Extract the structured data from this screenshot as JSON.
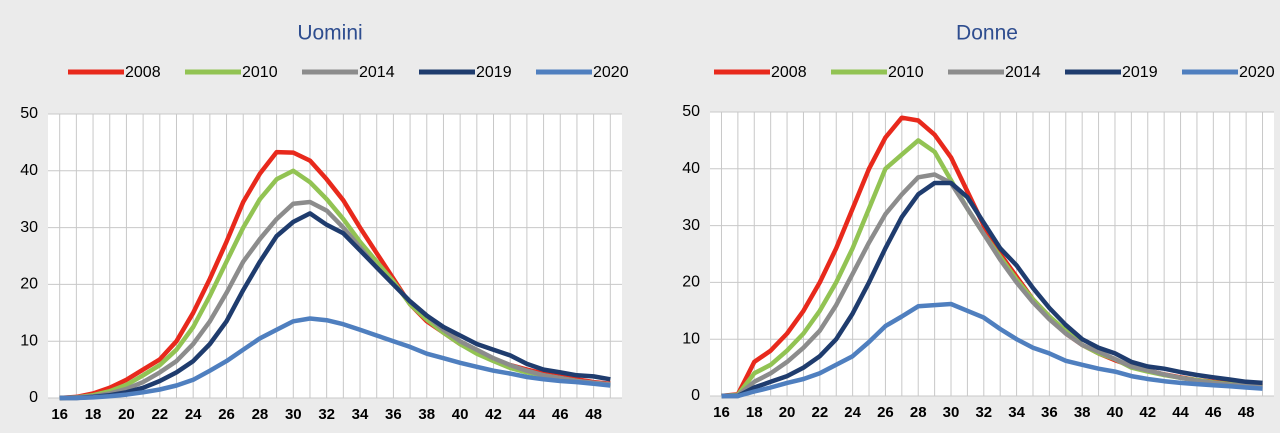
{
  "chart_data": [
    {
      "type": "line",
      "title": "Uomini",
      "x": [
        16,
        17,
        18,
        19,
        20,
        21,
        22,
        23,
        24,
        25,
        26,
        27,
        28,
        29,
        30,
        31,
        32,
        33,
        34,
        35,
        36,
        37,
        38,
        39,
        40,
        41,
        42,
        43,
        44,
        45,
        46,
        47,
        48,
        49
      ],
      "xlim": [
        15.3,
        49.7
      ],
      "xticks": [
        16,
        18,
        20,
        22,
        24,
        26,
        28,
        30,
        32,
        34,
        36,
        38,
        40,
        42,
        44,
        46,
        48
      ],
      "ylim": [
        0,
        50
      ],
      "yticks": [
        0,
        10,
        20,
        30,
        40,
        50
      ],
      "grid": true,
      "series": [
        {
          "name": "2008",
          "color": "#e8291c",
          "values": [
            0,
            0.2,
            0.8,
            1.8,
            3.2,
            5,
            6.8,
            10,
            15,
            21,
            27.5,
            34.5,
            39.5,
            43.3,
            43.2,
            41.8,
            38.5,
            34.8,
            30,
            25.5,
            21,
            16.5,
            13.5,
            11.5,
            9.5,
            8,
            6.8,
            5.8,
            5,
            4.3,
            3.8,
            3.3,
            2.8,
            2.5
          ]
        },
        {
          "name": "2010",
          "color": "#92c353",
          "values": [
            0,
            0.1,
            0.5,
            1.2,
            2.3,
            4,
            5.8,
            8.5,
            12.5,
            18,
            24,
            30,
            35,
            38.5,
            40,
            38,
            35,
            31.5,
            27.5,
            24,
            20.5,
            16.5,
            13.8,
            11.5,
            9.5,
            7.8,
            6.5,
            5.3,
            4.5,
            4,
            3.5,
            3,
            2.6,
            2.3
          ]
        },
        {
          "name": "2014",
          "color": "#8c8c8c",
          "values": [
            0,
            0.1,
            0.3,
            0.8,
            1.6,
            2.8,
            4.5,
            6.5,
            9.5,
            13.5,
            18.5,
            24,
            28,
            31.5,
            34.2,
            34.5,
            33,
            30,
            26.5,
            23,
            20,
            17,
            14.5,
            12,
            10,
            8.5,
            7,
            5.8,
            4.8,
            4,
            3.5,
            3,
            2.7,
            2.4
          ]
        },
        {
          "name": "2019",
          "color": "#1f3c6e",
          "values": [
            0,
            0,
            0.2,
            0.5,
            1,
            1.8,
            3,
            4.5,
            6.5,
            9.5,
            13.5,
            19,
            24,
            28.5,
            31,
            32.5,
            30.5,
            29,
            26,
            23,
            20,
            17,
            14.5,
            12.5,
            11,
            9.5,
            8.5,
            7.5,
            6,
            5,
            4.5,
            4,
            3.8,
            3.3
          ]
        },
        {
          "name": "2020",
          "color": "#4f7fbf",
          "values": [
            0,
            0,
            0.1,
            0.3,
            0.6,
            1,
            1.5,
            2.2,
            3.2,
            4.8,
            6.5,
            8.5,
            10.5,
            12,
            13.5,
            14,
            13.7,
            13,
            12,
            11,
            10,
            9,
            7.8,
            7,
            6.2,
            5.5,
            4.8,
            4.3,
            3.7,
            3.3,
            3,
            2.8,
            2.5,
            2.2
          ]
        }
      ]
    },
    {
      "type": "line",
      "title": "Donne",
      "x": [
        16,
        17,
        18,
        19,
        20,
        21,
        22,
        23,
        24,
        25,
        26,
        27,
        28,
        29,
        30,
        31,
        32,
        33,
        34,
        35,
        36,
        37,
        38,
        39,
        40,
        41,
        42,
        43,
        44,
        45,
        46,
        47,
        48,
        49
      ],
      "xlim": [
        15.3,
        49.7
      ],
      "xticks": [
        16,
        18,
        20,
        22,
        24,
        26,
        28,
        30,
        32,
        34,
        36,
        38,
        40,
        42,
        44,
        46,
        48
      ],
      "ylim": [
        0,
        50
      ],
      "yticks": [
        0,
        10,
        20,
        30,
        40,
        50
      ],
      "grid": true,
      "series": [
        {
          "name": "2008",
          "color": "#e8291c",
          "values": [
            0,
            0.3,
            6,
            8,
            11,
            15,
            20,
            26,
            33,
            40,
            45.5,
            49,
            48.5,
            46,
            42,
            36,
            30,
            25,
            21,
            17,
            14,
            11,
            9,
            7.5,
            6.3,
            5.3,
            4.5,
            3.8,
            3.3,
            2.8,
            2.5,
            2.2,
            2,
            1.8
          ]
        },
        {
          "name": "2010",
          "color": "#92c353",
          "values": [
            0,
            0.2,
            4,
            5.5,
            8,
            11,
            15,
            20,
            26,
            33,
            40,
            42.5,
            45,
            43,
            38,
            33,
            28.5,
            24.5,
            20.5,
            17,
            14,
            11.5,
            9,
            7.5,
            6.5,
            5,
            4.3,
            3.7,
            3.2,
            2.8,
            2.4,
            2.1,
            1.9,
            1.7
          ]
        },
        {
          "name": "2014",
          "color": "#8c8c8c",
          "values": [
            0,
            0.1,
            2.5,
            4,
            6,
            8.5,
            11.5,
            16,
            21.5,
            27,
            32,
            35.5,
            38.5,
            39,
            37.5,
            33,
            28.5,
            24,
            20,
            16.5,
            13.5,
            11,
            9,
            7.8,
            6.5,
            5.2,
            4.5,
            3.8,
            3.2,
            2.7,
            2.3,
            2,
            1.8,
            1.6
          ]
        },
        {
          "name": "2019",
          "color": "#1f3c6e",
          "values": [
            0,
            0,
            1.5,
            2.5,
            3.5,
            5,
            7,
            10,
            14.5,
            20,
            26,
            31.5,
            35.5,
            37.5,
            37.5,
            35,
            30.5,
            26,
            23,
            19,
            15.5,
            12.5,
            10,
            8.5,
            7.5,
            6,
            5.2,
            4.8,
            4.2,
            3.7,
            3.3,
            2.9,
            2.5,
            2.3
          ]
        },
        {
          "name": "2020",
          "color": "#4f7fbf",
          "values": [
            0,
            0,
            0.8,
            1.5,
            2.3,
            3,
            4,
            5.5,
            7,
            9.5,
            12.3,
            14,
            15.8,
            16,
            16.2,
            15,
            13.8,
            11.8,
            10,
            8.5,
            7.5,
            6.2,
            5.5,
            4.8,
            4.3,
            3.5,
            3,
            2.6,
            2.3,
            2.1,
            1.9,
            1.7,
            1.5,
            1.3
          ]
        }
      ]
    }
  ]
}
